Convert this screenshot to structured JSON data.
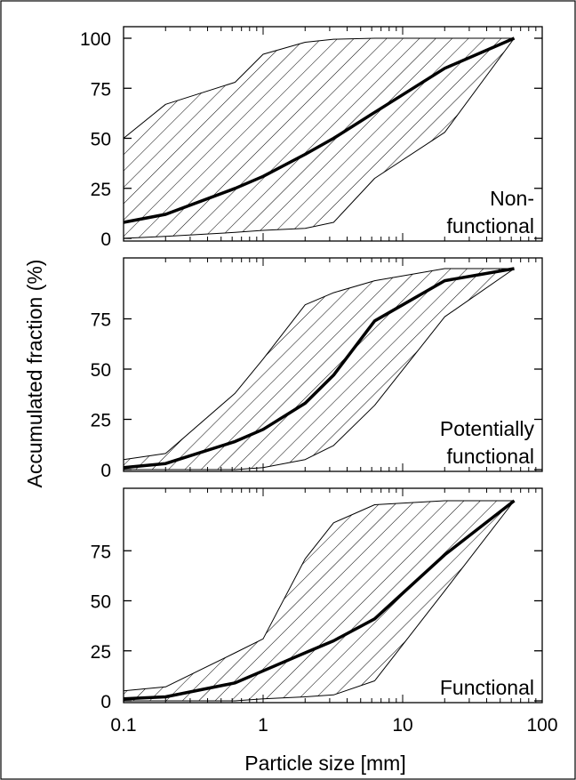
{
  "chart_data": {
    "type": "area",
    "xlabel": "Particle size [mm]",
    "ylabel": "Accumulated fraction (%)",
    "xscale": "log",
    "xlim": [
      0.1,
      100
    ],
    "ylim": [
      0,
      100
    ],
    "grid": false,
    "x_tick_labels": [
      {
        "value": 0.1,
        "label": "0.1"
      },
      {
        "value": 1,
        "label": "1"
      },
      {
        "value": 10,
        "label": "10"
      },
      {
        "value": 100,
        "label": "100"
      }
    ],
    "panels": [
      {
        "label_lines": [
          "Non-",
          "functional"
        ],
        "y_tick_labels": [
          {
            "value": 0,
            "label": "0"
          },
          {
            "value": 25,
            "label": "25"
          },
          {
            "value": 50,
            "label": "50"
          },
          {
            "value": 75,
            "label": "75"
          },
          {
            "value": 100,
            "label": "100"
          }
        ],
        "mean": {
          "x": [
            0.1,
            0.2,
            0.63,
            1,
            2,
            3.2,
            6.3,
            20,
            63
          ],
          "y": [
            8,
            12,
            25,
            31,
            42,
            50,
            63,
            85,
            100
          ]
        },
        "upper": {
          "x": [
            0.1,
            0.2,
            0.63,
            1,
            2,
            3.2,
            6.3,
            20,
            63
          ],
          "y": [
            50,
            67,
            78,
            92,
            98,
            99.5,
            100,
            100,
            100
          ]
        },
        "lower": {
          "x": [
            0.1,
            0.2,
            0.63,
            1,
            2,
            3.2,
            6.3,
            20,
            63
          ],
          "y": [
            0,
            1,
            3,
            4,
            5,
            8,
            30,
            53,
            100
          ]
        }
      },
      {
        "label_lines": [
          "Potentially",
          "functional"
        ],
        "y_tick_labels": [
          {
            "value": 0,
            "label": "0"
          },
          {
            "value": 25,
            "label": "25"
          },
          {
            "value": 50,
            "label": "50"
          },
          {
            "value": 75,
            "label": "75"
          }
        ],
        "mean": {
          "x": [
            0.1,
            0.2,
            0.63,
            1,
            2,
            3.2,
            6.3,
            20,
            63
          ],
          "y": [
            1,
            3,
            14,
            20,
            33,
            47,
            74,
            94,
            100
          ]
        },
        "upper": {
          "x": [
            0.1,
            0.2,
            0.63,
            1,
            2,
            3.2,
            6.3,
            20,
            63
          ],
          "y": [
            5,
            8,
            38,
            55,
            82,
            88,
            94,
            100,
            100
          ]
        },
        "lower": {
          "x": [
            0.1,
            0.2,
            0.63,
            1,
            2,
            3.2,
            6.3,
            20,
            63
          ],
          "y": [
            0,
            0,
            0,
            1,
            5,
            12,
            32,
            76,
            100
          ]
        }
      },
      {
        "label_lines": [
          "Functional"
        ],
        "y_tick_labels": [
          {
            "value": 0,
            "label": "0"
          },
          {
            "value": 25,
            "label": "25"
          },
          {
            "value": 50,
            "label": "50"
          },
          {
            "value": 75,
            "label": "75"
          }
        ],
        "mean": {
          "x": [
            0.1,
            0.2,
            0.63,
            1,
            2,
            3.2,
            6.3,
            20,
            63
          ],
          "y": [
            1,
            2,
            9,
            15,
            24,
            30,
            41,
            73,
            100
          ]
        },
        "upper": {
          "x": [
            0.1,
            0.2,
            0.63,
            1,
            2,
            3.2,
            6.3,
            20,
            63
          ],
          "y": [
            5,
            7,
            24,
            31,
            71,
            89,
            98,
            100,
            100
          ]
        },
        "lower": {
          "x": [
            0.1,
            0.2,
            0.63,
            1,
            2,
            3.2,
            6.3,
            20,
            63
          ],
          "y": [
            0,
            0,
            0,
            1,
            2,
            3,
            10,
            55,
            100
          ]
        }
      }
    ]
  }
}
